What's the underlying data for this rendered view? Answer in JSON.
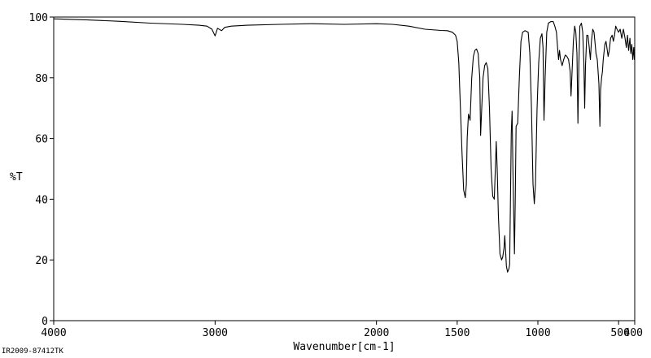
{
  "chart_data": {
    "type": "line",
    "title": "",
    "xlabel": "Wavenumber[cm-1]",
    "ylabel": "%T",
    "xlim": [
      4000,
      400
    ],
    "ylim": [
      0,
      100
    ],
    "x_reversed": true,
    "x_ticks": [
      4000,
      3000,
      2000,
      1500,
      1000,
      500,
      400
    ],
    "x_tick_labels": [
      "4000",
      "3000",
      "2000",
      "1500",
      "1000",
      "500",
      "400"
    ],
    "y_ticks": [
      0,
      20,
      40,
      60,
      80,
      100
    ],
    "y_tick_labels": [
      "0",
      "20",
      "40",
      "60",
      "80",
      "100"
    ],
    "grid": false,
    "series": [
      {
        "color": "#000000",
        "points": [
          [
            4000,
            99.4
          ],
          [
            3800,
            99.1
          ],
          [
            3600,
            98.6
          ],
          [
            3400,
            98.0
          ],
          [
            3200,
            97.6
          ],
          [
            3100,
            97.3
          ],
          [
            3050,
            97.0
          ],
          [
            3020,
            96.0
          ],
          [
            3000,
            93.8
          ],
          [
            2985,
            96.3
          ],
          [
            2960,
            95.5
          ],
          [
            2940,
            96.6
          ],
          [
            2900,
            97.0
          ],
          [
            2800,
            97.3
          ],
          [
            2600,
            97.6
          ],
          [
            2400,
            97.8
          ],
          [
            2200,
            97.6
          ],
          [
            2000,
            97.8
          ],
          [
            1900,
            97.6
          ],
          [
            1800,
            97.0
          ],
          [
            1700,
            96.0
          ],
          [
            1600,
            95.6
          ],
          [
            1560,
            95.5
          ],
          [
            1530,
            95.0
          ],
          [
            1510,
            94.0
          ],
          [
            1500,
            92.0
          ],
          [
            1490,
            85.0
          ],
          [
            1480,
            70.0
          ],
          [
            1470,
            55.0
          ],
          [
            1460,
            43.0
          ],
          [
            1450,
            40.5
          ],
          [
            1443,
            45.0
          ],
          [
            1438,
            60.0
          ],
          [
            1430,
            68.0
          ],
          [
            1420,
            66.0
          ],
          [
            1410,
            80.0
          ],
          [
            1400,
            87.0
          ],
          [
            1390,
            89.0
          ],
          [
            1380,
            89.5
          ],
          [
            1370,
            88.0
          ],
          [
            1360,
            80.0
          ],
          [
            1355,
            61.0
          ],
          [
            1348,
            70.0
          ],
          [
            1340,
            80.0
          ],
          [
            1330,
            84.0
          ],
          [
            1320,
            85.0
          ],
          [
            1310,
            83.0
          ],
          [
            1300,
            70.0
          ],
          [
            1290,
            50.0
          ],
          [
            1280,
            41.0
          ],
          [
            1270,
            40.0
          ],
          [
            1262,
            52.0
          ],
          [
            1258,
            59.0
          ],
          [
            1252,
            50.0
          ],
          [
            1245,
            35.0
          ],
          [
            1235,
            22.0
          ],
          [
            1225,
            20.0
          ],
          [
            1218,
            21.0
          ],
          [
            1210,
            24.0
          ],
          [
            1205,
            28.0
          ],
          [
            1200,
            23.0
          ],
          [
            1195,
            18.0
          ],
          [
            1188,
            16.0
          ],
          [
            1180,
            17.0
          ],
          [
            1175,
            18.5
          ],
          [
            1170,
            40.0
          ],
          [
            1165,
            62.0
          ],
          [
            1160,
            69.0
          ],
          [
            1155,
            50.0
          ],
          [
            1150,
            35.0
          ],
          [
            1145,
            22.0
          ],
          [
            1140,
            40.0
          ],
          [
            1135,
            64.0
          ],
          [
            1125,
            65.0
          ],
          [
            1115,
            80.0
          ],
          [
            1105,
            92.0
          ],
          [
            1095,
            95.0
          ],
          [
            1080,
            95.5
          ],
          [
            1060,
            95.0
          ],
          [
            1050,
            88.0
          ],
          [
            1040,
            70.0
          ],
          [
            1030,
            45.0
          ],
          [
            1022,
            38.5
          ],
          [
            1015,
            45.0
          ],
          [
            1005,
            70.0
          ],
          [
            995,
            85.0
          ],
          [
            985,
            93.0
          ],
          [
            975,
            94.5
          ],
          [
            968,
            90.0
          ],
          [
            962,
            66.0
          ],
          [
            955,
            80.0
          ],
          [
            945,
            95.0
          ],
          [
            935,
            98.0
          ],
          [
            920,
            98.5
          ],
          [
            905,
            98.5
          ],
          [
            895,
            97.0
          ],
          [
            885,
            95.0
          ],
          [
            878,
            90.0
          ],
          [
            872,
            86.0
          ],
          [
            866,
            89.0
          ],
          [
            860,
            86.0
          ],
          [
            850,
            84.0
          ],
          [
            840,
            86.0
          ],
          [
            830,
            87.5
          ],
          [
            820,
            87.0
          ],
          [
            810,
            86.0
          ],
          [
            800,
            82.0
          ],
          [
            795,
            74.0
          ],
          [
            790,
            80.0
          ],
          [
            780,
            92.0
          ],
          [
            772,
            97.0
          ],
          [
            765,
            95.0
          ],
          [
            758,
            88.0
          ],
          [
            752,
            65.0
          ],
          [
            746,
            85.0
          ],
          [
            740,
            97.0
          ],
          [
            730,
            98.0
          ],
          [
            722,
            95.0
          ],
          [
            715,
            85.0
          ],
          [
            710,
            70.0
          ],
          [
            705,
            84.0
          ],
          [
            697,
            94.0
          ],
          [
            690,
            94.0
          ],
          [
            682,
            90.0
          ],
          [
            675,
            86.0
          ],
          [
            668,
            92.0
          ],
          [
            660,
            96.0
          ],
          [
            652,
            95.0
          ],
          [
            645,
            91.0
          ],
          [
            640,
            88.0
          ],
          [
            632,
            86.0
          ],
          [
            622,
            78.0
          ],
          [
            616,
            64.0
          ],
          [
            612,
            76.0
          ],
          [
            605,
            80.0
          ],
          [
            600,
            82.0
          ],
          [
            595,
            86.0
          ],
          [
            585,
            91.0
          ],
          [
            578,
            92.0
          ],
          [
            570,
            89.0
          ],
          [
            565,
            87.0
          ],
          [
            558,
            89.0
          ],
          [
            550,
            93.0
          ],
          [
            540,
            94.0
          ],
          [
            532,
            92.0
          ],
          [
            525,
            94.0
          ],
          [
            518,
            97.0
          ],
          [
            510,
            96.0
          ],
          [
            500,
            95.0
          ],
          [
            490,
            96.0
          ],
          [
            480,
            93.0
          ],
          [
            470,
            96.0
          ],
          [
            460,
            93.0
          ],
          [
            452,
            90.0
          ],
          [
            445,
            94.0
          ],
          [
            438,
            89.0
          ],
          [
            430,
            93.0
          ],
          [
            424,
            88.0
          ],
          [
            418,
            91.0
          ],
          [
            412,
            86.0
          ],
          [
            406,
            90.0
          ],
          [
            402,
            86.0
          ],
          [
            400,
            87.0
          ]
        ]
      }
    ]
  },
  "footer": {
    "sample_id": "IR2009-87412TK"
  }
}
